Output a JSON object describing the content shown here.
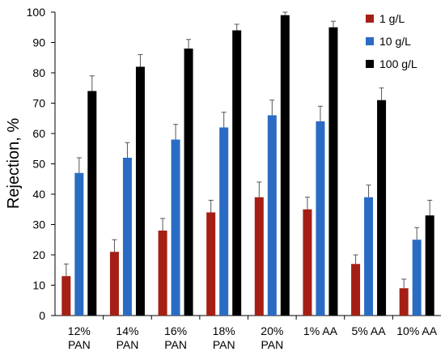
{
  "chart_data": {
    "type": "bar",
    "title": "",
    "xlabel": "",
    "ylabel": "Rejection, %",
    "ylim": [
      0,
      100
    ],
    "yticks": [
      0,
      10,
      20,
      30,
      40,
      50,
      60,
      70,
      80,
      90,
      100
    ],
    "grid": false,
    "legend_position": "top-right",
    "categories": [
      [
        "12%",
        "PAN"
      ],
      [
        "14%",
        "PAN"
      ],
      [
        "16%",
        "PAN"
      ],
      [
        "18%",
        "PAN"
      ],
      [
        "20%",
        "PAN"
      ],
      [
        "1% AA"
      ],
      [
        "5% AA"
      ],
      [
        "10% AA"
      ]
    ],
    "series": [
      {
        "name": "1 g/L",
        "color": "#a51f14",
        "values": [
          13,
          21,
          28,
          34,
          39,
          35,
          17,
          9
        ],
        "errors": [
          4,
          4,
          4,
          4,
          5,
          4,
          3,
          3
        ]
      },
      {
        "name": "10 g/L",
        "color": "#2a6cc4",
        "values": [
          47,
          52,
          58,
          62,
          66,
          64,
          39,
          25
        ],
        "errors": [
          5,
          5,
          5,
          5,
          5,
          5,
          4,
          4
        ]
      },
      {
        "name": "100 g/L",
        "color": "#000000",
        "values": [
          74,
          82,
          88,
          94,
          99,
          95,
          71,
          33
        ],
        "errors": [
          5,
          4,
          3,
          2,
          1,
          2,
          4,
          5
        ]
      }
    ]
  }
}
